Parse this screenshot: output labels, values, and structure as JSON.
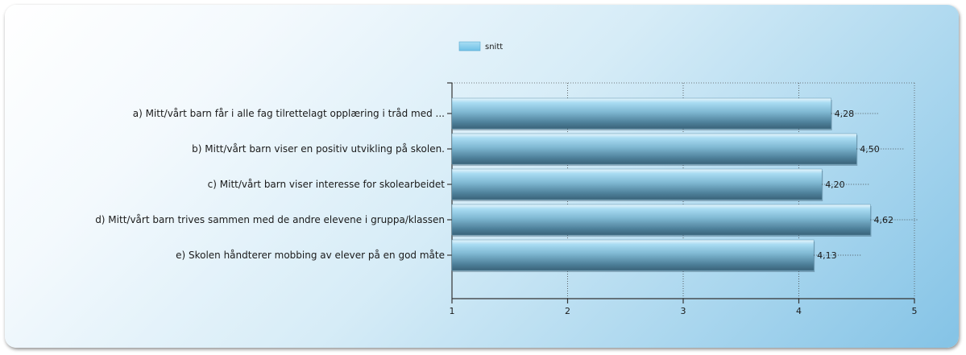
{
  "legend": {
    "label": "snitt",
    "color": "#7ec8ea"
  },
  "chart_data": {
    "type": "bar",
    "orientation": "horizontal",
    "categories": [
      "a) Mitt/vårt barn får i alle fag tilrettelagt opplæring i tråd med ...",
      "b) Mitt/vårt barn viser en positiv utvikling på skolen.",
      "c) Mitt/vårt barn viser interesse for skolearbeidet",
      "d) Mitt/vårt barn trives sammen med de andre elevene i gruppa/klassen",
      "e) Skolen håndterer mobbing av elever på en god måte"
    ],
    "series": [
      {
        "name": "snitt",
        "values": [
          4.28,
          4.5,
          4.2,
          4.62,
          4.13
        ],
        "labels": [
          "4,28",
          "4,50",
          "4,20",
          "4,62",
          "4,13"
        ]
      }
    ],
    "xlim": [
      1,
      5
    ],
    "xticks": [
      "1",
      "2",
      "3",
      "4",
      "5"
    ],
    "grid": true,
    "legend_position": "top-left"
  }
}
